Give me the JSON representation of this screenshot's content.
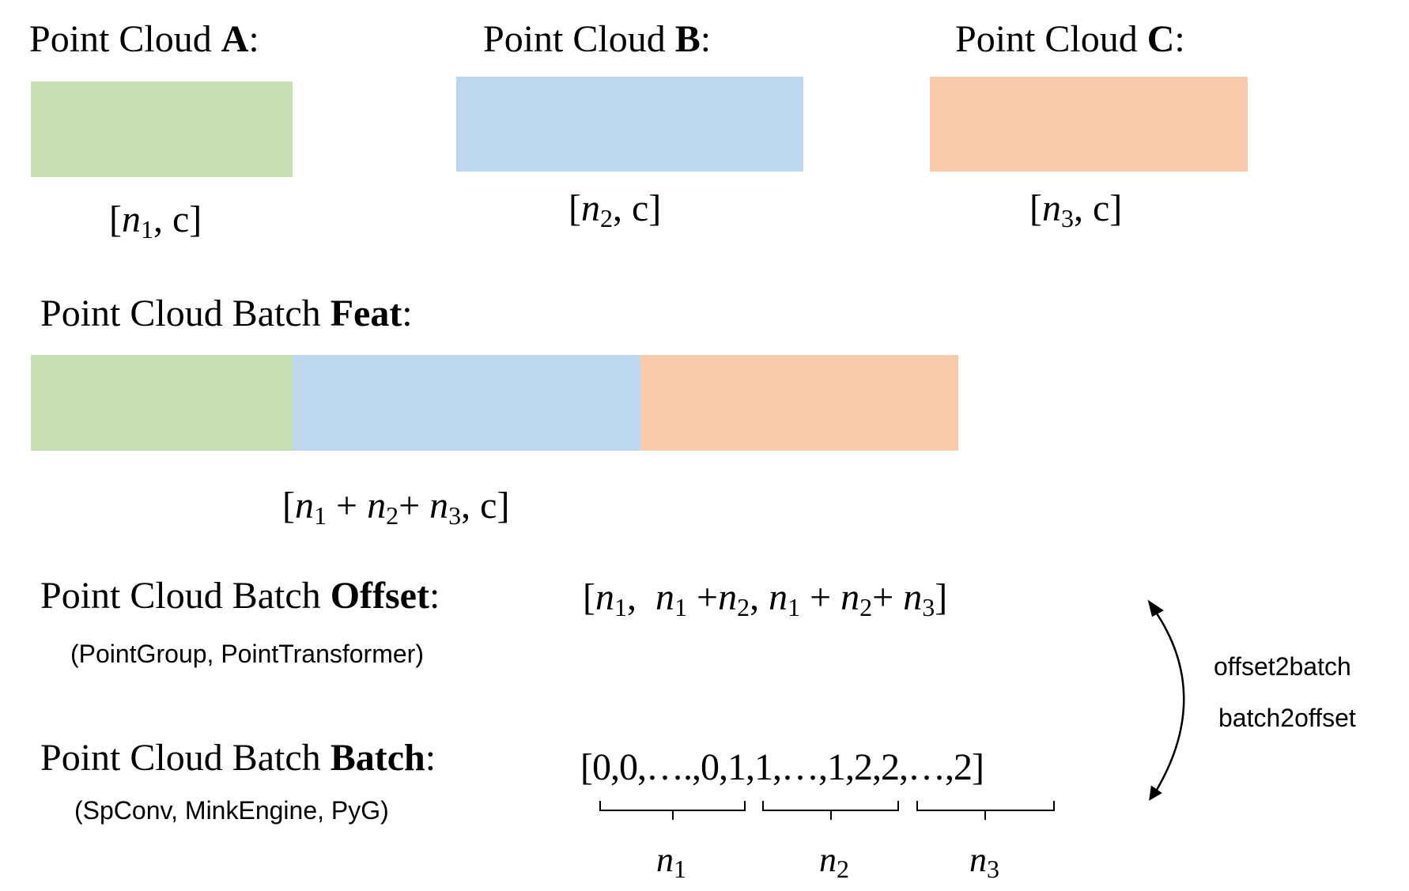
{
  "colors": {
    "cloud_a": "#c6e0b4",
    "cloud_b": "#bdd7ee",
    "cloud_c": "#f8cbad"
  },
  "clouds": [
    {
      "label": "Point Cloud ",
      "bold": "A",
      "suffix": ":",
      "shape": [
        {
          "k": "text",
          "v": "["
        },
        {
          "k": "var",
          "v": "n",
          "sub": "1"
        },
        {
          "k": "text",
          "v": ", c]"
        }
      ]
    },
    {
      "label": "Point Cloud ",
      "bold": "B",
      "suffix": ":",
      "shape": [
        {
          "k": "text",
          "v": "["
        },
        {
          "k": "var",
          "v": "n",
          "sub": "2"
        },
        {
          "k": "text",
          "v": ", c]"
        }
      ]
    },
    {
      "label": "Point Cloud ",
      "bold": "C",
      "suffix": ":",
      "shape": [
        {
          "k": "text",
          "v": "["
        },
        {
          "k": "var",
          "v": "n",
          "sub": "3"
        },
        {
          "k": "text",
          "v": ", c]"
        }
      ]
    }
  ],
  "feat": {
    "label": "Point Cloud Batch ",
    "bold": "Feat",
    "suffix": ":",
    "shape": [
      {
        "k": "text",
        "v": "["
      },
      {
        "k": "var",
        "v": "n",
        "sub": "1"
      },
      {
        "k": "text",
        "v": " + "
      },
      {
        "k": "var",
        "v": "n",
        "sub": "2"
      },
      {
        "k": "text",
        "v": "+ "
      },
      {
        "k": "var",
        "v": "n",
        "sub": "3"
      },
      {
        "k": "text",
        "v": ", c]"
      }
    ]
  },
  "offset": {
    "label": "Point Cloud Batch ",
    "bold": "Offset",
    "suffix": ":",
    "libraries": "(PointGroup, PointTransformer)",
    "value": [
      {
        "k": "text",
        "v": "["
      },
      {
        "k": "var",
        "v": "n",
        "sub": "1"
      },
      {
        "k": "text",
        "v": ",  "
      },
      {
        "k": "var",
        "v": "n",
        "sub": "1"
      },
      {
        "k": "text",
        "v": " +"
      },
      {
        "k": "var",
        "v": "n",
        "sub": "2"
      },
      {
        "k": "text",
        "v": ", "
      },
      {
        "k": "var",
        "v": "n",
        "sub": "1"
      },
      {
        "k": "text",
        "v": " + "
      },
      {
        "k": "var",
        "v": "n",
        "sub": "2"
      },
      {
        "k": "text",
        "v": "+ "
      },
      {
        "k": "var",
        "v": "n",
        "sub": "3"
      },
      {
        "k": "text",
        "v": "]"
      }
    ]
  },
  "batch": {
    "label": "Point Cloud Batch ",
    "bold": "Batch",
    "suffix": ":",
    "libraries": "(SpConv, MinkEngine, PyG)",
    "value": [
      {
        "k": "text",
        "v": "[0,0,….,0,1,1,…,1,2,2,…,2]"
      }
    ],
    "braces": [
      {
        "var": "n",
        "sub": "1"
      },
      {
        "var": "n",
        "sub": "2"
      },
      {
        "var": "n",
        "sub": "3"
      }
    ]
  },
  "conversion": {
    "forward": "offset2batch",
    "backward": "batch2offset"
  }
}
